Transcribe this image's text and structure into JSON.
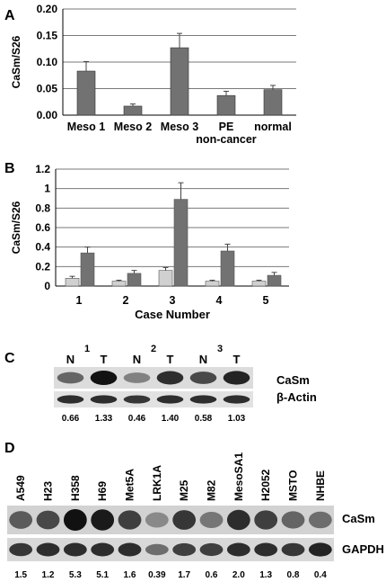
{
  "panels": {
    "A": {
      "letter": "A"
    },
    "B": {
      "letter": "B"
    },
    "C": {
      "letter": "C"
    },
    "D": {
      "letter": "D"
    }
  },
  "chart_data": [
    {
      "panel": "A",
      "type": "bar",
      "ylabel": "CaSm/S26",
      "ylim": [
        0,
        0.2
      ],
      "yticks": [
        "0.00",
        "0.05",
        "0.10",
        "0.15",
        "0.20"
      ],
      "categories": [
        "Meso 1",
        "Meso 2",
        "Meso  3",
        "PE non-cancer",
        "normal"
      ],
      "category_lines": [
        [
          "Meso 1"
        ],
        [
          "Meso 2"
        ],
        [
          "Meso  3"
        ],
        [
          "PE",
          "non-cancer"
        ],
        [
          "normal"
        ]
      ],
      "values": [
        0.083,
        0.017,
        0.127,
        0.037,
        0.048
      ],
      "errors": [
        0.018,
        0.004,
        0.027,
        0.008,
        0.008
      ],
      "grid": true,
      "bar_color": "#727272"
    },
    {
      "panel": "B",
      "type": "bar",
      "xlabel": "Case Number",
      "ylabel": "CaSm/S26",
      "ylim": [
        0,
        1.2
      ],
      "yticks": [
        "0",
        "0.2",
        "0.4",
        "0.6",
        "0.8",
        "1",
        "1.2"
      ],
      "categories": [
        "1",
        "2",
        "3",
        "4",
        "5"
      ],
      "series": [
        {
          "values": [
            0.08,
            0.05,
            0.16,
            0.05,
            0.05
          ],
          "errors": [
            0.02,
            0.01,
            0.03,
            0.01,
            0.01
          ],
          "color": "#d0d0d0"
        },
        {
          "values": [
            0.34,
            0.13,
            0.89,
            0.36,
            0.11
          ],
          "errors": [
            0.06,
            0.03,
            0.17,
            0.07,
            0.03
          ],
          "color": "#727272"
        }
      ],
      "grid": true
    }
  ],
  "blotC": {
    "case_numbers": [
      "1",
      "2",
      "3"
    ],
    "lane_labels": [
      "N",
      "T",
      "N",
      "T",
      "N",
      "T"
    ],
    "band_labels": [
      "CaSm",
      "β-Actin"
    ],
    "ratios": [
      "0.66",
      "1.33",
      "0.46",
      "1.40",
      "0.58",
      "1.03"
    ],
    "casm_intensity": [
      0.55,
      1.0,
      0.4,
      0.85,
      0.7,
      0.9
    ],
    "actin_intensity": [
      0.85,
      0.85,
      0.8,
      0.85,
      0.85,
      0.85
    ]
  },
  "blotD": {
    "cell_lines": [
      "A549",
      "H23",
      "H358",
      "H69",
      "Met5A",
      "LRK1A",
      "M25",
      "M82",
      "MesoSA1",
      "H2052",
      "MSTO",
      "NHBE"
    ],
    "band_labels": [
      "CaSm",
      "GAPDH"
    ],
    "ratios": [
      "1.5",
      "1.2",
      "5.3",
      "5.1",
      "1.6",
      "0.39",
      "1.7",
      "0.6",
      "2.0",
      "1.3",
      "0.8",
      "0.4"
    ],
    "casm_intensity": [
      0.6,
      0.7,
      1.0,
      0.95,
      0.75,
      0.35,
      0.8,
      0.45,
      0.85,
      0.75,
      0.55,
      0.5
    ],
    "gapdh_intensity": [
      0.8,
      0.85,
      0.85,
      0.85,
      0.85,
      0.5,
      0.75,
      0.75,
      0.85,
      0.85,
      0.8,
      0.9
    ]
  }
}
